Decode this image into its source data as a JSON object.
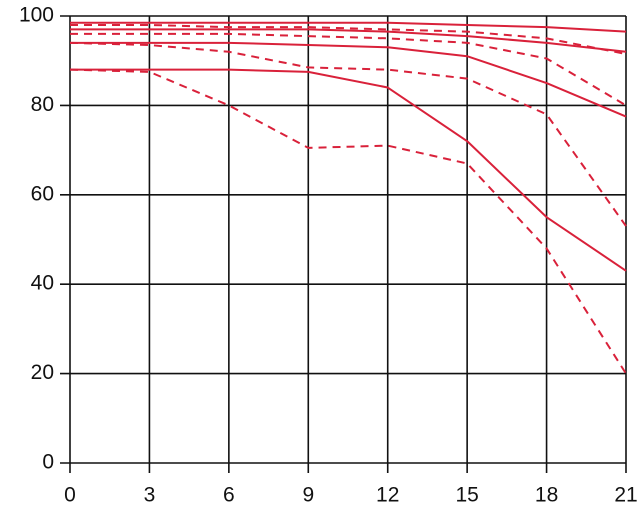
{
  "chart_data": {
    "type": "line",
    "x": [
      0,
      3,
      6,
      9,
      12,
      15,
      18,
      21
    ],
    "xlim": [
      0,
      21
    ],
    "xticks": [
      0,
      3,
      6,
      9,
      12,
      15,
      18,
      21
    ],
    "ylim": [
      0,
      100
    ],
    "yticks": [
      0,
      20,
      40,
      60,
      80,
      100
    ],
    "grid": true,
    "series": [
      {
        "color": "#d9213a",
        "style": "solid",
        "values": [
          98.5,
          98.5,
          98.5,
          98.5,
          98.5,
          98,
          97.5,
          96.5
        ]
      },
      {
        "color": "#d9213a",
        "style": "dashed",
        "values": [
          98,
          98,
          97.5,
          97.5,
          97,
          96.5,
          95,
          91.5
        ]
      },
      {
        "color": "#d9213a",
        "style": "solid",
        "values": [
          97,
          97,
          97,
          97,
          96.5,
          95.5,
          94,
          92
        ]
      },
      {
        "color": "#d9213a",
        "style": "dashed",
        "values": [
          96,
          96,
          96,
          95.5,
          95,
          94,
          90.5,
          80
        ]
      },
      {
        "color": "#d9213a",
        "style": "solid",
        "values": [
          94,
          94,
          94,
          93.5,
          93,
          91,
          85,
          77.5
        ]
      },
      {
        "color": "#d9213a",
        "style": "dashed",
        "values": [
          94,
          93.5,
          92,
          88.5,
          88,
          86,
          78,
          53
        ]
      },
      {
        "color": "#d9213a",
        "style": "solid",
        "values": [
          88,
          88,
          88,
          87.5,
          84,
          72,
          55,
          43
        ]
      },
      {
        "color": "#d9213a",
        "style": "dashed",
        "values": [
          88,
          87.5,
          80,
          70.5,
          71,
          67,
          48,
          20
        ]
      }
    ]
  }
}
